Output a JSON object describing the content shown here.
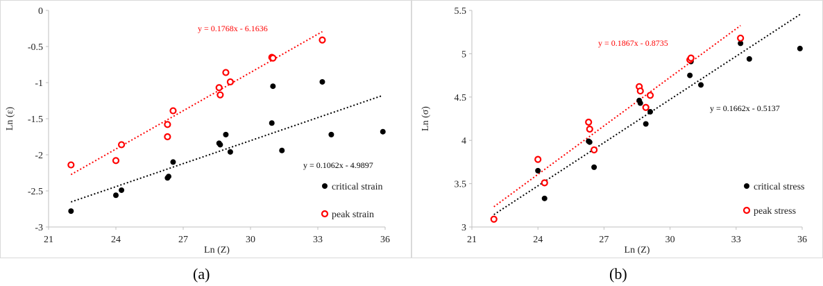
{
  "captions": [
    "(a)",
    "(b)"
  ],
  "chart_data": [
    {
      "type": "scatter",
      "xlabel": "Ln (Z)",
      "ylabel": "Ln (ε)",
      "xlim": [
        21,
        36
      ],
      "ylim": [
        -3,
        0
      ],
      "xticks": [
        "21",
        "24",
        "27",
        "30",
        "33",
        "36"
      ],
      "yticks": [
        "-3",
        "-2.5",
        "-2",
        "-1.5",
        "-1",
        "-0.5",
        "0"
      ],
      "legend_position": "bottom-right",
      "grid": false,
      "series": [
        {
          "name": "critical strain",
          "color": "#000000",
          "marker": "filled-circle",
          "points": [
            [
              22.0,
              -2.78
            ],
            [
              24.0,
              -2.56
            ],
            [
              24.25,
              -2.49
            ],
            [
              26.3,
              -2.32
            ],
            [
              26.35,
              -2.3
            ],
            [
              26.55,
              -2.1
            ],
            [
              28.6,
              -1.84
            ],
            [
              28.65,
              -1.86
            ],
            [
              28.9,
              -1.72
            ],
            [
              29.1,
              -1.96
            ],
            [
              30.95,
              -1.56
            ],
            [
              31.0,
              -1.05
            ],
            [
              31.4,
              -1.94
            ],
            [
              33.2,
              -0.99
            ],
            [
              33.6,
              -1.72
            ],
            [
              35.9,
              -1.68
            ]
          ],
          "trendline": {
            "label": "y = 0.1062x - 4.9897",
            "slope": 0.1062,
            "intercept": -4.9897,
            "x_range": [
              22.0,
              35.9
            ],
            "color": "#000000"
          }
        },
        {
          "name": "peak strain",
          "color": "#ff0000",
          "marker": "open-circle",
          "points": [
            [
              22.0,
              -2.14
            ],
            [
              24.0,
              -2.08
            ],
            [
              24.25,
              -1.86
            ],
            [
              26.3,
              -1.58
            ],
            [
              26.3,
              -1.75
            ],
            [
              26.55,
              -1.39
            ],
            [
              28.6,
              -1.07
            ],
            [
              28.65,
              -1.17
            ],
            [
              28.9,
              -0.86
            ],
            [
              29.1,
              -0.99
            ],
            [
              30.95,
              -0.65
            ],
            [
              31.0,
              -0.66
            ],
            [
              33.2,
              -0.41
            ]
          ],
          "trendline": {
            "label": "y = 0.1768x - 6.1636",
            "slope": 0.1768,
            "intercept": -6.1636,
            "x_range": [
              22.0,
              33.2
            ],
            "color": "#ff0000"
          }
        }
      ]
    },
    {
      "type": "scatter",
      "xlabel": "Ln (Z)",
      "ylabel": "Ln (σ)",
      "xlim": [
        21,
        36
      ],
      "ylim": [
        3,
        5.5
      ],
      "xticks": [
        "21",
        "24",
        "27",
        "30",
        "33",
        "36"
      ],
      "yticks": [
        "3",
        "3.5",
        "4",
        "4.5",
        "5",
        "5.5"
      ],
      "legend_position": "bottom-right",
      "grid": false,
      "series": [
        {
          "name": "critical stress",
          "color": "#000000",
          "marker": "filled-circle",
          "points": [
            [
              22.0,
              3.09
            ],
            [
              24.0,
              3.65
            ],
            [
              24.3,
              3.33
            ],
            [
              26.3,
              3.99
            ],
            [
              26.35,
              3.98
            ],
            [
              26.55,
              3.69
            ],
            [
              28.6,
              4.46
            ],
            [
              28.65,
              4.43
            ],
            [
              28.9,
              4.19
            ],
            [
              29.1,
              4.33
            ],
            [
              30.9,
              4.75
            ],
            [
              30.95,
              4.91
            ],
            [
              31.4,
              4.64
            ],
            [
              33.2,
              5.12
            ],
            [
              33.6,
              4.94
            ],
            [
              35.9,
              5.06
            ]
          ],
          "trendline": {
            "label": "y = 0.1662x - 0.5137",
            "slope": 0.1662,
            "intercept": -0.5137,
            "x_range": [
              22.0,
              35.9
            ],
            "color": "#000000"
          }
        },
        {
          "name": "peak stress",
          "color": "#ff0000",
          "marker": "open-circle",
          "points": [
            [
              22.0,
              3.09
            ],
            [
              24.0,
              3.78
            ],
            [
              24.3,
              3.51
            ],
            [
              26.3,
              4.21
            ],
            [
              26.35,
              4.13
            ],
            [
              26.55,
              3.89
            ],
            [
              28.6,
              4.62
            ],
            [
              28.65,
              4.57
            ],
            [
              28.9,
              4.38
            ],
            [
              29.1,
              4.52
            ],
            [
              30.9,
              4.93
            ],
            [
              30.95,
              4.95
            ],
            [
              33.2,
              5.18
            ]
          ],
          "trendline": {
            "label": "y = 0.1867x - 0.8735",
            "slope": 0.1867,
            "intercept": -0.8735,
            "x_range": [
              22.0,
              33.2
            ],
            "color": "#ff0000"
          }
        }
      ]
    }
  ]
}
